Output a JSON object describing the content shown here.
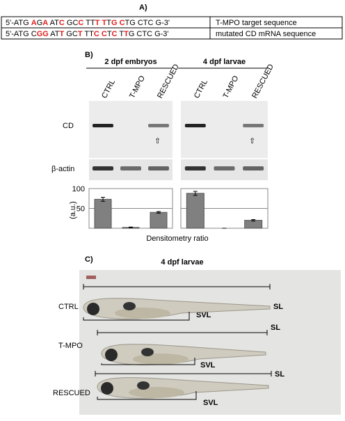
{
  "panel_a": {
    "label": "A)",
    "rows": [
      {
        "sequence": [
          {
            "text": "5'-ATG ",
            "color": "#000"
          },
          {
            "text": "A",
            "color": "#e02020"
          },
          {
            "text": "G",
            "color": "#000"
          },
          {
            "text": "A",
            "color": "#e02020"
          },
          {
            "text": " AT",
            "color": "#000"
          },
          {
            "text": "C",
            "color": "#e02020"
          },
          {
            "text": " GC",
            "color": "#000"
          },
          {
            "text": "C",
            "color": "#e02020"
          },
          {
            "text": " TT",
            "color": "#000"
          },
          {
            "text": "T",
            "color": "#e02020"
          },
          {
            "text": " ",
            "color": "#000"
          },
          {
            "text": "T",
            "color": "#e02020"
          },
          {
            "text": "T",
            "color": "#000"
          },
          {
            "text": "G",
            "color": "#e02020"
          },
          {
            "text": " ",
            "color": "#000"
          },
          {
            "text": "C",
            "color": "#e02020"
          },
          {
            "text": "TG CTC G-3'",
            "color": "#000"
          }
        ],
        "description": "T-MPO target sequence"
      },
      {
        "sequence": [
          {
            "text": "5'-ATG C",
            "color": "#000"
          },
          {
            "text": "GG",
            "color": "#e02020"
          },
          {
            "text": " AT",
            "color": "#000"
          },
          {
            "text": "T",
            "color": "#e02020"
          },
          {
            "text": " GC",
            "color": "#000"
          },
          {
            "text": "T",
            "color": "#e02020"
          },
          {
            "text": " TT",
            "color": "#000"
          },
          {
            "text": "C",
            "color": "#e02020"
          },
          {
            "text": " ",
            "color": "#000"
          },
          {
            "text": "C",
            "color": "#e02020"
          },
          {
            "text": "T",
            "color": "#000"
          },
          {
            "text": "C",
            "color": "#e02020"
          },
          {
            "text": " T",
            "color": "#000"
          },
          {
            "text": "T",
            "color": "#e02020"
          },
          {
            "text": "G CTC G-3'",
            "color": "#000"
          }
        ],
        "description": "mutated CD mRNA sequence"
      }
    ]
  },
  "panel_b": {
    "label": "B)",
    "blot_labels": [
      "CD",
      "β-actin"
    ],
    "ylabel": "(a.u.)",
    "xlabel": "Densitometry ratio"
  },
  "chart_data": [
    {
      "type": "bar",
      "title": "2 dpf embryos",
      "categories": [
        "CTRL",
        "T-MPO",
        "RESCUED"
      ],
      "values": [
        73,
        2,
        40
      ],
      "errors": [
        5,
        1,
        2
      ],
      "color": "#808080",
      "ylim": [
        0,
        100
      ],
      "yticks": [
        50,
        100
      ],
      "grid": true
    },
    {
      "type": "bar",
      "title": "4 dpf larvae",
      "categories": [
        "CTRL",
        "T-MPO",
        "RESCUED"
      ],
      "values": [
        88,
        0,
        20
      ],
      "errors": [
        5,
        0,
        2
      ],
      "color": "#808080",
      "ylim": [
        0,
        100
      ],
      "yticks": [
        50,
        100
      ],
      "grid": true
    }
  ],
  "panel_c": {
    "label": "C)",
    "title": "4 dpf larvae",
    "groups": [
      "CTRL",
      "T-MPO",
      "RESCUED"
    ],
    "sl": "SL",
    "svl": "SVL"
  }
}
